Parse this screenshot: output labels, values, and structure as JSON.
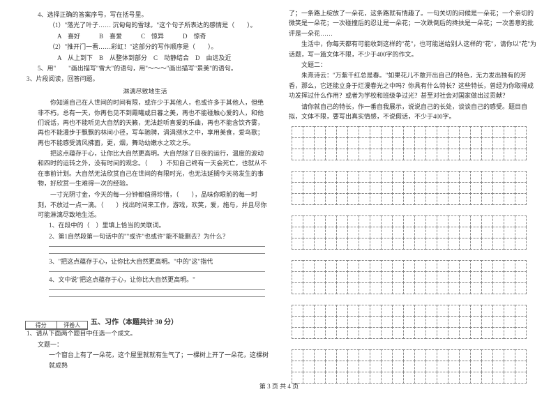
{
  "left": {
    "q4": {
      "stem": "4、选择正确的答案序号，写在括号里。",
      "sub1": "（1）\"落光了叶子…… 沉甸甸的雪球。\"这个句子所表达的感情是（　　）。",
      "opts1": "A　喜好　　　B　喜爱　　　C　惊异　　　D　惊奇",
      "sub2": "（2）\"推开门一看……彩虹！\"这部分的写作顺序是（　　）。",
      "opts2": "A　从上到下　B　从整体到部分　C　动静结合　D　由远及近"
    },
    "q5": "5、用\"　　\"画出描写\"雪大\"的语句，用\"～～～\"画出描写\"景美\"的语句。",
    "q3": {
      "title": "3、片段阅读，回答问题。",
      "heading": "淋漓尽致地生活",
      "p1": "你知道自己在人世间的时间有限，或许少于其他人，也或许多于其他人，但绝非不朽。总有一天，你再也见不到霞曦或日暮之美，再也不能碰触心爱的人，和他们说话，再也不能听见大自然的天籁，无法趁听喜爱的乐曲，再也不能含饮齐雾，再也不能漫步于飘飘的林间小径，写车驰骋，涓涓溯水之中，享用美食，爱鸟歌；再也不能感受清风拂面，更，烟，舞动幼嫩水之欢之乐。",
      "p2": "把这点蕴存于心，让你比大自然更高明。大自然除了日夜的运行，温度的波动和四时的运转之外，没有时间的观念。（　　）不知自己终有一天会死亡，也就从不在事前计划。大自然无法欣赏自己在世间的有限时光，也无法延搁今天将发生的事物，好欣赏一生难得一次的经验。",
      "p3": "一寸光阴寸金，今天的每一分钟都值得珍惜，（　　），品味你眼前的每一时刻，不放过一点一滴。（　　）找出时间来工作，游戏，欢笑，爱，施与，并且尽你可能淋漓尽致地生活。",
      "q1": "1、在段中的（　）里填上恰当的关联词。",
      "q2": "2、第1自然段第一句话中的\"\"或许\"也或许\"能不能删去？为什么？",
      "q3": "3、\"把这点蕴存于心，让你比大自然更高明。\"中的\"这\"指代",
      "q4": "4、文中说\"把这点蕴存于心，让你比大自然更高明。\""
    },
    "section5": {
      "score_h1": "得分",
      "score_h2": "评卷人",
      "title": "五、习作（本题共计 30 分）",
      "q1": "1、请从下面两个题目中任选一个成文。",
      "t1label": "文题一：",
      "t1": "一个窗台上有了一朵花，这个屋里就就有生气了；一棵树上开了一朵花，这棵树就成熟"
    }
  },
  "right": {
    "p1": "了；一条路上绽放了一朵花，这条路就有情趣了。一句关切的问候是一朵花；一个亲切的微笑是一朵花；一次碰撞后的忍让是一朵花；一次跌倒后的搀扶是一朵花；一次善意的批评是一朵花……",
    "p2": "生活中，你每天都有可能收到这样的\"花\"，也可能送给别人这样的\"花\"，请你以\"花\"为话题，写一篇文体不限，不少于400字的作文。",
    "t2label": "文题二：",
    "p3": "朱熹诗云：\"万紫千红总是春。\"如果花儿不敢开出自己的特色，无力发出独有的芳香，那么，它还能立身于烂漫春光之中吗？你具有什么特长？这些特长，曾经为你取得成功发挥过什么作用？或者为学校和班级争过光？甚至对社会对国家做出过贡献？",
    "p4": "请你就自己的特长，作一番自我展示，说说自己的长处，谈谈自己的感受。题目自拟，文体不限，要写出真实情感，不说假话，不少于400字。",
    "grid": {
      "cols": 21,
      "blocks": [
        3,
        3,
        3,
        3,
        3,
        3
      ]
    }
  },
  "footer": "第 3 页 共 4 页"
}
